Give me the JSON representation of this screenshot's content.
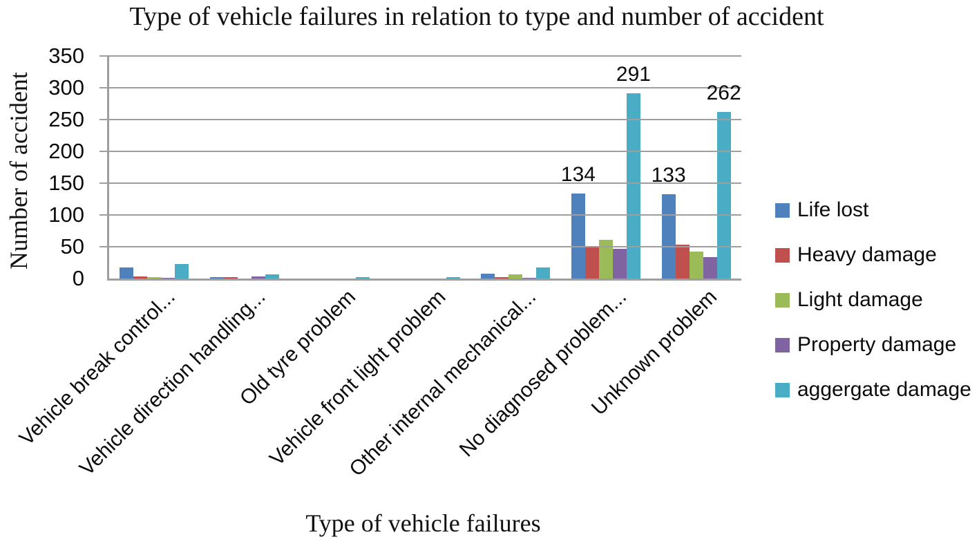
{
  "chart_data": {
    "type": "bar",
    "title": "Type of vehicle failures in relation to type and number of accident",
    "xlabel": "Type of vehicle failures",
    "ylabel": "Number of accident",
    "ylim": [
      0,
      350
    ],
    "yticks": [
      0,
      50,
      100,
      150,
      200,
      250,
      300,
      350
    ],
    "grid": true,
    "legend_position": "right",
    "categories": [
      "Vehicle break control...",
      "Vehicle direction handling...",
      "Old tyre problem",
      "Vehicle front light problem",
      "Other internal mechanical...",
      "No diagnosed problem...",
      "Unknown problem"
    ],
    "series": [
      {
        "name": "Life lost",
        "color": "#4F81BD",
        "values": [
          17,
          2,
          0,
          0,
          8,
          134,
          133
        ]
      },
      {
        "name": "Heavy damage",
        "color": "#C0504D",
        "values": [
          3,
          2,
          0,
          0,
          2,
          49,
          53
        ]
      },
      {
        "name": "Light damage",
        "color": "#9BBB59",
        "values": [
          2,
          0,
          0,
          0,
          6,
          61,
          42
        ]
      },
      {
        "name": "Property damage",
        "color": "#8064A2",
        "values": [
          1,
          3,
          0,
          0,
          1,
          47,
          34
        ]
      },
      {
        "name": "aggergate damage",
        "color": "#4BACC6",
        "values": [
          23,
          7,
          2,
          2,
          17,
          291,
          262
        ]
      }
    ],
    "shown_data_labels": [
      {
        "category_index": 5,
        "series_index": 0,
        "label": "134"
      },
      {
        "category_index": 5,
        "series_index": 4,
        "label": "291"
      },
      {
        "category_index": 6,
        "series_index": 0,
        "label": "133"
      },
      {
        "category_index": 6,
        "series_index": 4,
        "label": "262"
      }
    ],
    "grid_color": "#9e9e9e",
    "text_color": "#0c0c0c"
  }
}
